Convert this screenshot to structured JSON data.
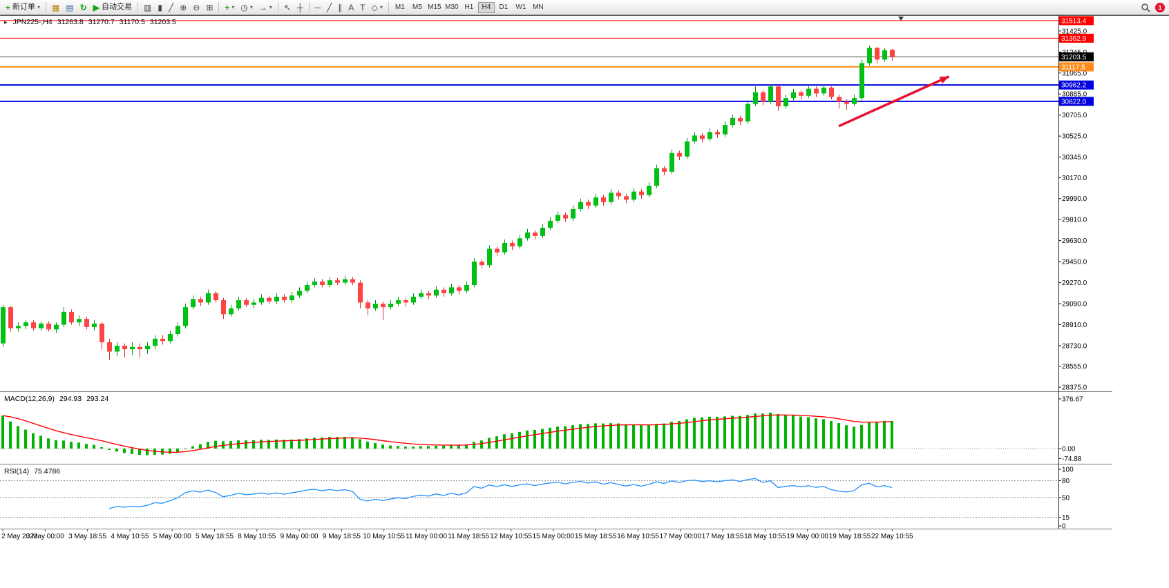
{
  "toolbar": {
    "new_order_label": "新订单",
    "auto_trading_label": "自动交易",
    "timeframes": [
      "M1",
      "M5",
      "M15",
      "M30",
      "H1",
      "H4",
      "D1",
      "W1",
      "MN"
    ],
    "active_timeframe": "H4",
    "notification_count": "1",
    "icons": {
      "new_order": "+",
      "dropdown": "▾",
      "chart_window": "▦",
      "profiles": "▤",
      "refresh": "↻",
      "auto_play": "▶",
      "bar_chart": "▥",
      "candle_chart": "▮",
      "line_chart": "╱",
      "zoom_in": "⊕",
      "zoom_out": "⊖",
      "tile_windows": "⊞",
      "indicators_add": "+",
      "clock": "◷",
      "chart_shift": "→",
      "cursor": "↖",
      "crosshair": "┼",
      "hline": "─",
      "trendline": "╱",
      "channel": "∥",
      "text_tool": "A",
      "label_tool": "T",
      "shapes": "◇",
      "one_click_toggle": "▸"
    }
  },
  "chart_header": {
    "symbol": "JPN225-,H4",
    "open": "31263.8",
    "high": "31270.7",
    "low": "31170.5",
    "close": "31203.5"
  },
  "indicators": {
    "macd": {
      "label": "MACD(12,26,9)",
      "value_main": "294.93",
      "value_signal": "293.24"
    },
    "rsi": {
      "label": "RSI(14)",
      "value": "75.4786"
    }
  },
  "chart_data": {
    "type": "candlestick",
    "title": "JPN225-,H4",
    "timeframe": "H4",
    "price_range": [
      28340,
      31560
    ],
    "current_price": 31203.5,
    "colors": {
      "up": "#00c014",
      "down": "#ff4343",
      "wick_up": "#00940f",
      "wick_down": "#d32f2f",
      "macd_hist": "#00b400",
      "macd_signal": "#ff0000",
      "rsi_line": "#1e90ff",
      "arrow": "#e8112d",
      "line_red": "#ff0000",
      "line_orange": "#ff8c1a",
      "line_blue": "#0000e0",
      "bid_line": "#444444"
    },
    "y_ticks": [
      31425.0,
      31245.0,
      31065.0,
      30885.0,
      30705.0,
      30525.0,
      30345.0,
      30170.0,
      29990.0,
      29810.0,
      29630.0,
      29450.0,
      29270.0,
      29090.0,
      28910.0,
      28730.0,
      28555.0,
      28375.0
    ],
    "hlines": [
      {
        "price": 31513.4,
        "color": "#ff0000",
        "width": 1
      },
      {
        "price": 31362.9,
        "color": "#ff0000",
        "width": 1
      },
      {
        "price": 31117.5,
        "color": "#ff8c1a",
        "width": 2
      },
      {
        "price": 30962.2,
        "color": "#0000e0",
        "width": 2
      },
      {
        "price": 30822.0,
        "color": "#0000e0",
        "width": 2
      }
    ],
    "price_badges": [
      {
        "value": "31513.4",
        "color": "#ff0000"
      },
      {
        "value": "31362.9",
        "color": "#ff0000"
      },
      {
        "value": "31203.5",
        "color": "#000000"
      },
      {
        "value": "31117.5",
        "color": "#ff8c1a"
      },
      {
        "value": "30962.2",
        "color": "#0000e0"
      },
      {
        "value": "30822.0",
        "color": "#0000e0"
      }
    ],
    "annotation_arrow": {
      "x1_index": 110,
      "y1_price": 30610,
      "x2_index": 124.5,
      "y2_price": 31035
    },
    "macd_panel": {
      "scale_labels": [
        376.67,
        0.0,
        -74.88
      ],
      "params": [
        12,
        26,
        9
      ]
    },
    "rsi_panel": {
      "scale_labels": [
        100,
        80,
        50,
        15,
        0
      ],
      "levels": [
        80,
        50,
        15
      ],
      "period": 14
    },
    "time_labels": [
      "2 May 2023",
      "3 May 00:00",
      "3 May 18:55",
      "4 May 10:55",
      "5 May 00:00",
      "5 May 18:55",
      "8 May 10:55",
      "9 May 00:00",
      "9 May 18:55",
      "10 May 10:55",
      "11 May 00:00",
      "11 May 18:55",
      "12 May 10:55",
      "15 May 00:00",
      "15 May 18:55",
      "16 May 10:55",
      "17 May 00:00",
      "17 May 18:55",
      "18 May 10:55",
      "19 May 00:00",
      "19 May 18:55",
      "22 May 10:55"
    ],
    "candles": [
      [
        28750,
        29080,
        28720,
        29060
      ],
      [
        29060,
        29070,
        28850,
        28880
      ],
      [
        28880,
        28930,
        28850,
        28900
      ],
      [
        28900,
        28950,
        28870,
        28930
      ],
      [
        28930,
        28950,
        28860,
        28880
      ],
      [
        28880,
        28940,
        28860,
        28920
      ],
      [
        28920,
        28940,
        28850,
        28870
      ],
      [
        28870,
        28930,
        28840,
        28910
      ],
      [
        28910,
        29060,
        28890,
        29020
      ],
      [
        29020,
        29040,
        28910,
        28930
      ],
      [
        28930,
        28990,
        28900,
        28960
      ],
      [
        28960,
        28980,
        28870,
        28890
      ],
      [
        28890,
        28950,
        28860,
        28920
      ],
      [
        28920,
        28930,
        28700,
        28760
      ],
      [
        28760,
        28790,
        28610,
        28680
      ],
      [
        28680,
        28760,
        28640,
        28730
      ],
      [
        28730,
        28750,
        28630,
        28700
      ],
      [
        28700,
        28760,
        28650,
        28720
      ],
      [
        28720,
        28750,
        28630,
        28700
      ],
      [
        28700,
        28760,
        28660,
        28730
      ],
      [
        28730,
        28820,
        28700,
        28790
      ],
      [
        28790,
        28820,
        28740,
        28770
      ],
      [
        28770,
        28860,
        28750,
        28830
      ],
      [
        28830,
        28930,
        28810,
        28900
      ],
      [
        28900,
        29090,
        28880,
        29060
      ],
      [
        29060,
        29160,
        29040,
        29130
      ],
      [
        29130,
        29150,
        29070,
        29100
      ],
      [
        29100,
        29210,
        29080,
        29180
      ],
      [
        29180,
        29200,
        29100,
        29120
      ],
      [
        29120,
        29140,
        28960,
        29000
      ],
      [
        29000,
        29080,
        28980,
        29050
      ],
      [
        29050,
        29150,
        29030,
        29120
      ],
      [
        29120,
        29140,
        29060,
        29080
      ],
      [
        29080,
        29130,
        29050,
        29100
      ],
      [
        29100,
        29170,
        29080,
        29140
      ],
      [
        29140,
        29160,
        29090,
        29110
      ],
      [
        29110,
        29180,
        29090,
        29150
      ],
      [
        29150,
        29170,
        29100,
        29120
      ],
      [
        29120,
        29190,
        29100,
        29160
      ],
      [
        29160,
        29230,
        29140,
        29200
      ],
      [
        29200,
        29280,
        29180,
        29250
      ],
      [
        29250,
        29310,
        29230,
        29280
      ],
      [
        29280,
        29300,
        29230,
        29250
      ],
      [
        29250,
        29320,
        29230,
        29290
      ],
      [
        29290,
        29310,
        29250,
        29270
      ],
      [
        29270,
        29330,
        29250,
        29300
      ],
      [
        29300,
        29320,
        29250,
        29270
      ],
      [
        29270,
        29290,
        29050,
        29100
      ],
      [
        29100,
        29120,
        28990,
        29050
      ],
      [
        29050,
        29120,
        29030,
        29090
      ],
      [
        29090,
        29110,
        28950,
        29060
      ],
      [
        29060,
        29120,
        29040,
        29090
      ],
      [
        29090,
        29150,
        29070,
        29120
      ],
      [
        29120,
        29140,
        29070,
        29100
      ],
      [
        29100,
        29180,
        29080,
        29150
      ],
      [
        29150,
        29210,
        29130,
        29180
      ],
      [
        29180,
        29200,
        29130,
        29160
      ],
      [
        29160,
        29240,
        29140,
        29210
      ],
      [
        29210,
        29230,
        29150,
        29180
      ],
      [
        29180,
        29260,
        29160,
        29230
      ],
      [
        29230,
        29250,
        29170,
        29200
      ],
      [
        29200,
        29280,
        29180,
        29250
      ],
      [
        29250,
        29480,
        29230,
        29450
      ],
      [
        29450,
        29470,
        29390,
        29420
      ],
      [
        29420,
        29590,
        29400,
        29560
      ],
      [
        29560,
        29580,
        29500,
        29530
      ],
      [
        29530,
        29640,
        29510,
        29610
      ],
      [
        29610,
        29630,
        29550,
        29580
      ],
      [
        29580,
        29680,
        29560,
        29650
      ],
      [
        29650,
        29730,
        29630,
        29700
      ],
      [
        29700,
        29720,
        29640,
        29670
      ],
      [
        29670,
        29770,
        29650,
        29740
      ],
      [
        29740,
        29830,
        29720,
        29800
      ],
      [
        29800,
        29880,
        29780,
        29850
      ],
      [
        29850,
        29870,
        29790,
        29820
      ],
      [
        29820,
        29930,
        29800,
        29900
      ],
      [
        29900,
        29990,
        29880,
        29960
      ],
      [
        29960,
        29980,
        29900,
        29930
      ],
      [
        29930,
        30030,
        29910,
        30000
      ],
      [
        30000,
        30020,
        29930,
        29960
      ],
      [
        29960,
        30070,
        29940,
        30040
      ],
      [
        30040,
        30060,
        29980,
        30010
      ],
      [
        30010,
        30030,
        29950,
        29980
      ],
      [
        29980,
        30080,
        29960,
        30050
      ],
      [
        30050,
        30070,
        29990,
        30020
      ],
      [
        30020,
        30130,
        30000,
        30100
      ],
      [
        30100,
        30280,
        30080,
        30250
      ],
      [
        30250,
        30270,
        30190,
        30220
      ],
      [
        30220,
        30410,
        30200,
        30380
      ],
      [
        30380,
        30400,
        30320,
        30350
      ],
      [
        30350,
        30510,
        30330,
        30480
      ],
      [
        30480,
        30560,
        30460,
        30530
      ],
      [
        30530,
        30550,
        30470,
        30500
      ],
      [
        30500,
        30590,
        30480,
        30560
      ],
      [
        30560,
        30580,
        30510,
        30540
      ],
      [
        30540,
        30650,
        30520,
        30620
      ],
      [
        30620,
        30710,
        30600,
        30680
      ],
      [
        30680,
        30700,
        30620,
        30650
      ],
      [
        30650,
        30830,
        30630,
        30800
      ],
      [
        30800,
        30950,
        30780,
        30900
      ],
      [
        30900,
        30920,
        30790,
        30820
      ],
      [
        30820,
        30970,
        30800,
        30950
      ],
      [
        30950,
        30960,
        30740,
        30780
      ],
      [
        30780,
        30880,
        30760,
        30850
      ],
      [
        30850,
        30930,
        30830,
        30900
      ],
      [
        30900,
        30920,
        30840,
        30870
      ],
      [
        30870,
        30960,
        30850,
        30930
      ],
      [
        30930,
        30950,
        30860,
        30890
      ],
      [
        30890,
        30970,
        30870,
        30940
      ],
      [
        30940,
        30950,
        30840,
        30860
      ],
      [
        30860,
        30880,
        30760,
        30820
      ],
      [
        30820,
        30840,
        30750,
        30800
      ],
      [
        30800,
        30880,
        30780,
        30850
      ],
      [
        30850,
        31180,
        30830,
        31150
      ],
      [
        31150,
        31300,
        31130,
        31280
      ],
      [
        31280,
        31290,
        31150,
        31180
      ],
      [
        31180,
        31280,
        31160,
        31260
      ],
      [
        31263.8,
        31270.7,
        31170.5,
        31203.5
      ]
    ]
  }
}
